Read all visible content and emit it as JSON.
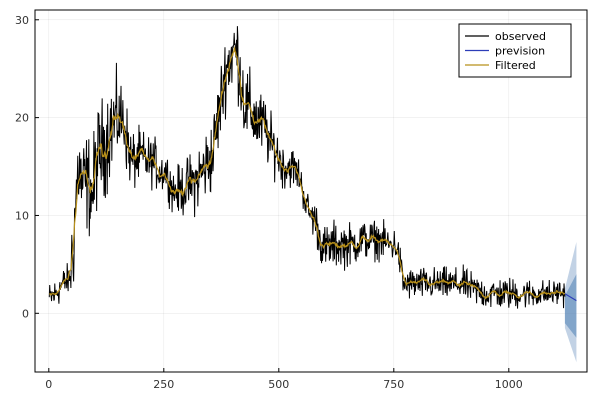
{
  "chart_data": {
    "type": "line",
    "title": "",
    "xlabel": "",
    "ylabel": "",
    "xlim": [
      -30,
      1170
    ],
    "ylim": [
      -6,
      31
    ],
    "xticks": [
      0,
      250,
      500,
      750,
      1000
    ],
    "yticks": [
      0,
      10,
      20,
      30
    ],
    "grid": true,
    "legend_position": "top-right",
    "series": [
      {
        "name": "observed",
        "color": "#000000",
        "anchors": [
          [
            1,
            1.5
          ],
          [
            15,
            2
          ],
          [
            30,
            3
          ],
          [
            45,
            3.5
          ],
          [
            52,
            6
          ],
          [
            58,
            11
          ],
          [
            65,
            15
          ],
          [
            72,
            13
          ],
          [
            85,
            13.5
          ],
          [
            95,
            12
          ],
          [
            105,
            16
          ],
          [
            120,
            17
          ],
          [
            135,
            19
          ],
          [
            150,
            20
          ],
          [
            165,
            19.5
          ],
          [
            172,
            17
          ],
          [
            180,
            15.5
          ],
          [
            200,
            16
          ],
          [
            215,
            15.5
          ],
          [
            230,
            15.5
          ],
          [
            240,
            14.5
          ],
          [
            255,
            14.5
          ],
          [
            270,
            12.5
          ],
          [
            285,
            12.5
          ],
          [
            300,
            13
          ],
          [
            320,
            13.5
          ],
          [
            340,
            15
          ],
          [
            355,
            16
          ],
          [
            365,
            19
          ],
          [
            375,
            22
          ],
          [
            385,
            25
          ],
          [
            395,
            26
          ],
          [
            402,
            27
          ],
          [
            410,
            26.5
          ],
          [
            418,
            24
          ],
          [
            425,
            21.5
          ],
          [
            440,
            20.5
          ],
          [
            455,
            19.5
          ],
          [
            470,
            19
          ],
          [
            480,
            17.5
          ],
          [
            495,
            16.5
          ],
          [
            510,
            15
          ],
          [
            530,
            15
          ],
          [
            545,
            14
          ],
          [
            560,
            11
          ],
          [
            570,
            10
          ],
          [
            580,
            9.5
          ],
          [
            590,
            7.5
          ],
          [
            600,
            6.5
          ],
          [
            620,
            7
          ],
          [
            640,
            7
          ],
          [
            660,
            7
          ],
          [
            680,
            7.5
          ],
          [
            700,
            7.5
          ],
          [
            720,
            7.5
          ],
          [
            740,
            7
          ],
          [
            755,
            7
          ],
          [
            765,
            5
          ],
          [
            770,
            3
          ],
          [
            790,
            3
          ],
          [
            820,
            3
          ],
          [
            850,
            3
          ],
          [
            880,
            3
          ],
          [
            900,
            3
          ],
          [
            920,
            2.5
          ],
          [
            950,
            2
          ],
          [
            990,
            2
          ],
          [
            1020,
            2
          ],
          [
            1050,
            2
          ],
          [
            1080,
            2
          ],
          [
            1095,
            2
          ],
          [
            1110,
            2.2
          ],
          [
            1122,
            2
          ]
        ],
        "noise": [
          [
            0,
            0.8
          ],
          [
            45,
            0.8
          ],
          [
            50,
            2.5
          ],
          [
            130,
            2.5
          ],
          [
            180,
            1.5
          ],
          [
            260,
            1
          ],
          [
            340,
            1.8
          ],
          [
            430,
            2
          ],
          [
            500,
            1.2
          ],
          [
            560,
            0.8
          ],
          [
            600,
            1.2
          ],
          [
            770,
            0.8
          ],
          [
            900,
            0.8
          ],
          [
            1000,
            0.8
          ],
          [
            1122,
            0.6
          ]
        ]
      },
      {
        "name": "prevision",
        "color": "#2d3db8",
        "forecast_start": 1122,
        "points": [
          [
            1122,
            2
          ],
          [
            1147,
            1.3
          ]
        ],
        "intervals": [
          {
            "color": "#4f7fb5",
            "opacity": 0.35,
            "upper": [
              [
                1122,
                2.5
              ],
              [
                1147,
                7.3
              ]
            ],
            "lower": [
              [
                1122,
                -1.5
              ],
              [
                1147,
                -5
              ]
            ]
          },
          {
            "color": "#4f7fb5",
            "opacity": 0.55,
            "upper": [
              [
                1122,
                1.8
              ],
              [
                1147,
                4
              ]
            ],
            "lower": [
              [
                1122,
                -1
              ],
              [
                1147,
                -2.5
              ]
            ]
          }
        ]
      },
      {
        "name": "Filtered",
        "color": "#b8901a",
        "smoothing_window": 7
      }
    ]
  }
}
